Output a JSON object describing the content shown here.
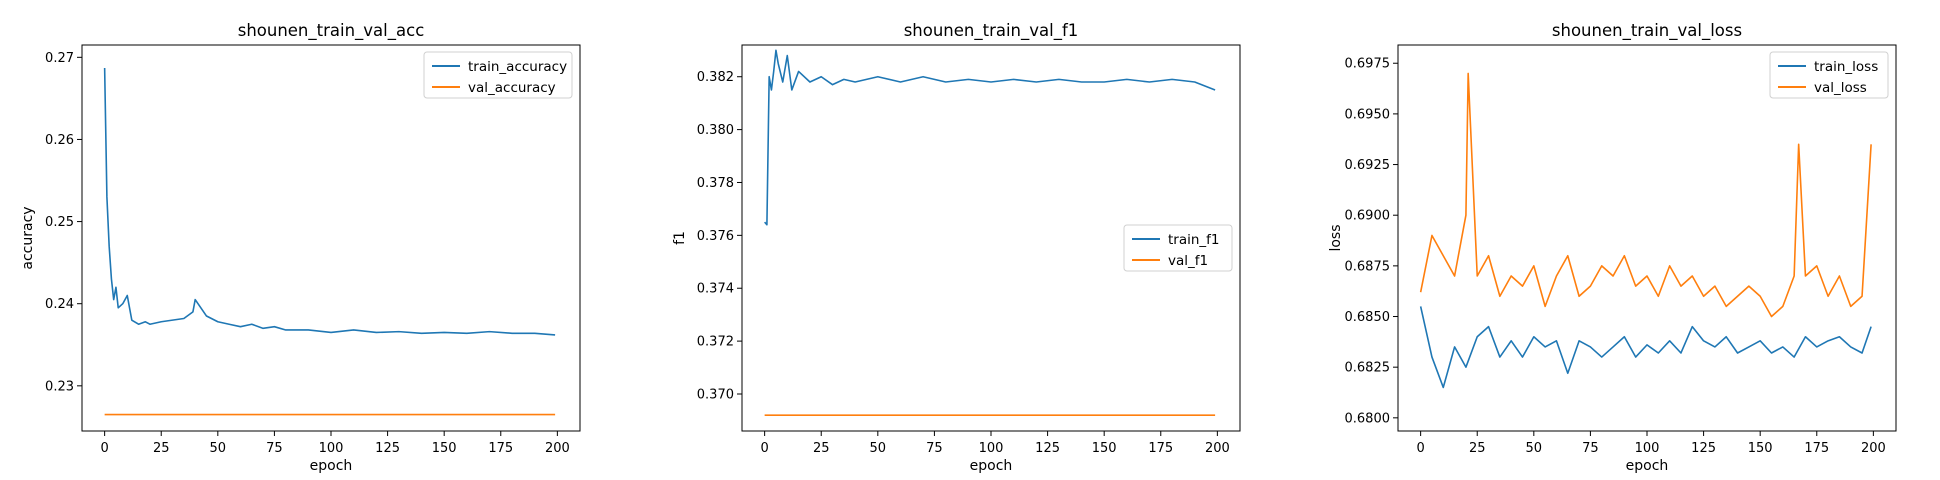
{
  "chart_data": [
    {
      "type": "line",
      "title": "shounen_train_val_acc",
      "xlabel": "epoch",
      "ylabel": "accuracy",
      "xlim": [
        -10,
        210
      ],
      "ylim": [
        0.2245,
        0.2715
      ],
      "xticks": [
        0,
        25,
        50,
        75,
        100,
        125,
        150,
        175,
        200
      ],
      "yticks": [
        0.23,
        0.24,
        0.25,
        0.26,
        0.27
      ],
      "ytick_labels": [
        "0.23",
        "0.24",
        "0.25",
        "0.26",
        "0.27"
      ],
      "legend_position": "top-right",
      "series": [
        {
          "name": "train_accuracy",
          "color": "#1f77b4",
          "x": [
            0,
            1,
            2,
            3,
            4,
            5,
            6,
            8,
            10,
            12,
            15,
            18,
            20,
            25,
            30,
            35,
            39,
            40,
            45,
            50,
            55,
            60,
            65,
            70,
            75,
            80,
            90,
            100,
            110,
            120,
            130,
            140,
            150,
            160,
            170,
            180,
            190,
            199
          ],
          "y": [
            0.2687,
            0.253,
            0.247,
            0.243,
            0.2405,
            0.242,
            0.2395,
            0.24,
            0.241,
            0.238,
            0.2375,
            0.2378,
            0.2375,
            0.2378,
            0.238,
            0.2382,
            0.239,
            0.2405,
            0.2385,
            0.2378,
            0.2375,
            0.2372,
            0.2375,
            0.237,
            0.2372,
            0.2368,
            0.2368,
            0.2365,
            0.2368,
            0.2365,
            0.2366,
            0.2364,
            0.2365,
            0.2364,
            0.2366,
            0.2364,
            0.2364,
            0.2362
          ]
        },
        {
          "name": "val_accuracy",
          "color": "#ff7f0e",
          "x": [
            0,
            199
          ],
          "y": [
            0.2265,
            0.2265
          ]
        }
      ]
    },
    {
      "type": "line",
      "title": "shounen_train_val_f1",
      "xlabel": "epoch",
      "ylabel": "f1",
      "xlim": [
        -10,
        210
      ],
      "ylim": [
        0.3686,
        0.3832
      ],
      "xticks": [
        0,
        25,
        50,
        75,
        100,
        125,
        150,
        175,
        200
      ],
      "yticks": [
        0.37,
        0.372,
        0.374,
        0.376,
        0.378,
        0.38,
        0.382
      ],
      "ytick_labels": [
        "0.370",
        "0.372",
        "0.374",
        "0.376",
        "0.378",
        "0.380",
        "0.382"
      ],
      "legend_position": "center-right",
      "series": [
        {
          "name": "train_f1",
          "color": "#1f77b4",
          "x": [
            0,
            1,
            2,
            3,
            4,
            5,
            6,
            8,
            10,
            12,
            15,
            20,
            25,
            30,
            35,
            40,
            50,
            60,
            70,
            80,
            90,
            100,
            110,
            120,
            130,
            140,
            150,
            160,
            170,
            180,
            190,
            199
          ],
          "y": [
            0.3765,
            0.3764,
            0.382,
            0.3815,
            0.3822,
            0.383,
            0.3825,
            0.3818,
            0.3828,
            0.3815,
            0.3822,
            0.3818,
            0.382,
            0.3817,
            0.3819,
            0.3818,
            0.382,
            0.3818,
            0.382,
            0.3818,
            0.3819,
            0.3818,
            0.3819,
            0.3818,
            0.3819,
            0.3818,
            0.3818,
            0.3819,
            0.3818,
            0.3819,
            0.3818,
            0.3815
          ]
        },
        {
          "name": "val_f1",
          "color": "#ff7f0e",
          "x": [
            0,
            199
          ],
          "y": [
            0.3692,
            0.3692
          ]
        }
      ]
    },
    {
      "type": "line",
      "title": "shounen_train_val_loss",
      "xlabel": "epoch",
      "ylabel": "loss",
      "xlim": [
        -10,
        210
      ],
      "ylim": [
        0.67935,
        0.6984
      ],
      "xticks": [
        0,
        25,
        50,
        75,
        100,
        125,
        150,
        175,
        200
      ],
      "yticks": [
        0.68,
        0.6825,
        0.685,
        0.6875,
        0.69,
        0.6925,
        0.695,
        0.6975
      ],
      "ytick_labels": [
        "0.6800",
        "0.6825",
        "0.6850",
        "0.6875",
        "0.6900",
        "0.6925",
        "0.6950",
        "0.6975"
      ],
      "legend_position": "top-right",
      "series": [
        {
          "name": "train_loss",
          "color": "#1f77b4",
          "x": [
            0,
            5,
            10,
            15,
            20,
            25,
            30,
            35,
            40,
            45,
            50,
            55,
            60,
            65,
            70,
            75,
            80,
            85,
            90,
            95,
            100,
            105,
            110,
            115,
            120,
            125,
            130,
            135,
            140,
            145,
            150,
            155,
            160,
            165,
            170,
            175,
            180,
            185,
            190,
            195,
            199
          ],
          "y": [
            0.6855,
            0.683,
            0.6815,
            0.6835,
            0.6825,
            0.684,
            0.6845,
            0.683,
            0.6838,
            0.683,
            0.684,
            0.6835,
            0.6838,
            0.6822,
            0.6838,
            0.6835,
            0.683,
            0.6835,
            0.684,
            0.683,
            0.6836,
            0.6832,
            0.6838,
            0.6832,
            0.6845,
            0.6838,
            0.6835,
            0.684,
            0.6832,
            0.6835,
            0.6838,
            0.6832,
            0.6835,
            0.683,
            0.684,
            0.6835,
            0.6838,
            0.684,
            0.6835,
            0.6832,
            0.6845
          ]
        },
        {
          "name": "val_loss",
          "color": "#ff7f0e",
          "x": [
            0,
            5,
            10,
            15,
            20,
            21,
            25,
            30,
            35,
            40,
            45,
            50,
            55,
            60,
            65,
            70,
            75,
            80,
            85,
            90,
            95,
            100,
            105,
            110,
            115,
            120,
            125,
            130,
            135,
            140,
            145,
            150,
            155,
            160,
            165,
            167,
            170,
            175,
            180,
            185,
            190,
            195,
            199
          ],
          "y": [
            0.6862,
            0.689,
            0.688,
            0.687,
            0.69,
            0.697,
            0.687,
            0.688,
            0.686,
            0.687,
            0.6865,
            0.6875,
            0.6855,
            0.687,
            0.688,
            0.686,
            0.6865,
            0.6875,
            0.687,
            0.688,
            0.6865,
            0.687,
            0.686,
            0.6875,
            0.6865,
            0.687,
            0.686,
            0.6865,
            0.6855,
            0.686,
            0.6865,
            0.686,
            0.685,
            0.6855,
            0.687,
            0.6935,
            0.687,
            0.6875,
            0.686,
            0.687,
            0.6855,
            0.686,
            0.6935
          ]
        }
      ]
    }
  ]
}
